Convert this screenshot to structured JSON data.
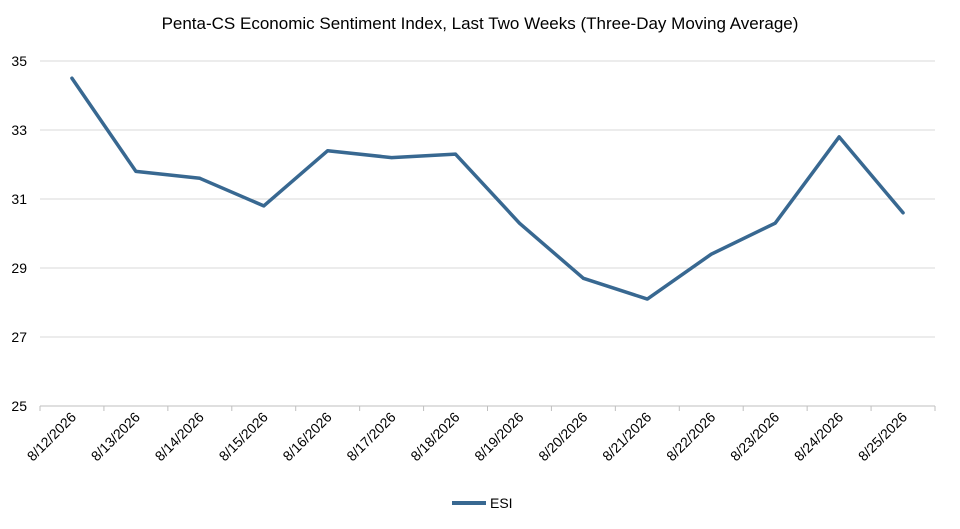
{
  "colors": {
    "series": "#386891",
    "grid": "#d9d9d9",
    "axis": "#bfbfbf"
  },
  "chart_data": {
    "type": "line",
    "title": "Penta-CS Economic Sentiment Index, Last Two Weeks (Three-Day Moving Average)",
    "xlabel": "",
    "ylabel": "",
    "categories": [
      "8/12/2026",
      "8/13/2026",
      "8/14/2026",
      "8/15/2026",
      "8/16/2026",
      "8/17/2026",
      "8/18/2026",
      "8/19/2026",
      "8/20/2026",
      "8/21/2026",
      "8/22/2026",
      "8/23/2026",
      "8/24/2026",
      "8/25/2026"
    ],
    "series": [
      {
        "name": "ESI",
        "values": [
          34.5,
          31.8,
          31.6,
          30.8,
          32.4,
          32.2,
          32.3,
          30.3,
          28.7,
          28.1,
          29.4,
          30.3,
          32.8,
          30.6
        ]
      }
    ],
    "ylim": [
      25,
      35
    ],
    "yticks": [
      25,
      27,
      29,
      31,
      33,
      35
    ],
    "grid": true,
    "legend_position": "bottom"
  }
}
